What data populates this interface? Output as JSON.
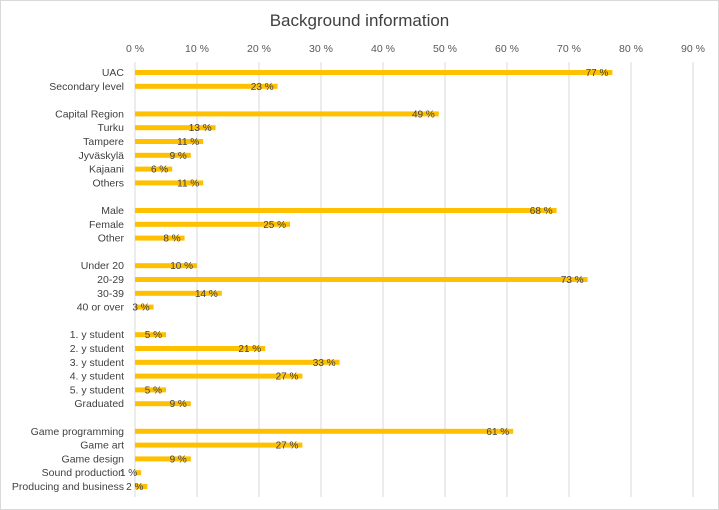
{
  "chart_data": {
    "type": "bar",
    "orientation": "horizontal",
    "title": "Background information",
    "xlim": [
      0,
      90
    ],
    "xticks": [
      "0 %",
      "10 %",
      "20 %",
      "30 %",
      "40 %",
      "50 %",
      "60 %",
      "70 %",
      "80 %",
      "90 %"
    ],
    "xaxis_position": "top",
    "grid": true,
    "legend": "none",
    "bar_color": "#FFC000",
    "categories": [
      "UAC",
      "Secondary level",
      "",
      "Capital Region",
      "Turku",
      "Tampere",
      "Jyväskylä",
      "Kajaani",
      "Others",
      "",
      "Male",
      "Female",
      "Other",
      "",
      "Under 20",
      "20-29",
      "30-39",
      "40 or over",
      "",
      "1. y student",
      "2. y student",
      "3. y student",
      "4. y student",
      "5. y student",
      "Graduated",
      "",
      "Game programming",
      "Game art",
      "Game design",
      "Sound production",
      "Producing and business"
    ],
    "values": [
      77,
      23,
      null,
      49,
      13,
      11,
      9,
      6,
      11,
      null,
      68,
      25,
      8,
      null,
      10,
      73,
      14,
      3,
      null,
      5,
      21,
      33,
      27,
      5,
      9,
      null,
      61,
      27,
      9,
      1,
      2
    ],
    "data_labels": [
      "77 %",
      "23 %",
      "",
      "49 %",
      "13 %",
      "11 %",
      "9 %",
      "6 %",
      "11 %",
      "",
      "68 %",
      "25 %",
      "8 %",
      "",
      "10 %",
      "73 %",
      "14 %",
      "3 %",
      "",
      "5 %",
      "21 %",
      "33 %",
      "27 %",
      "5 %",
      "9 %",
      "",
      "61 %",
      "27 %",
      "9 %",
      "1 %",
      "2 %"
    ]
  }
}
